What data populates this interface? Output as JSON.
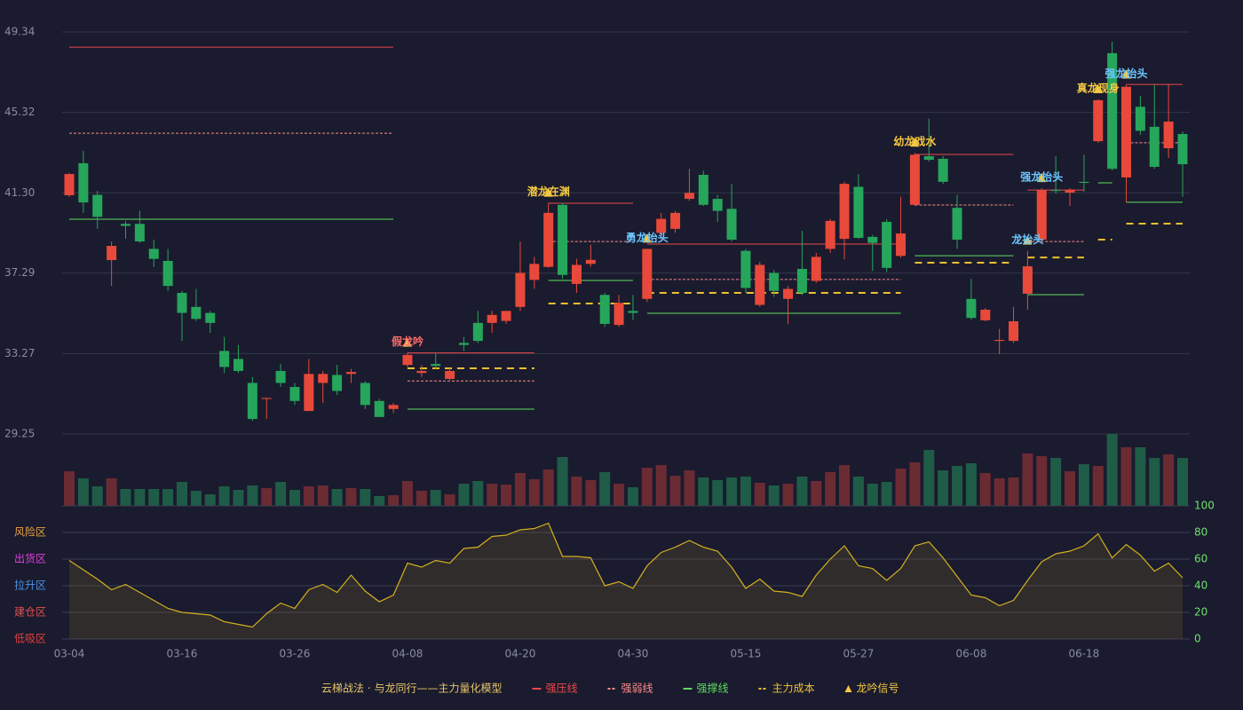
{
  "chart_data": [
    {
      "type": "candlestick",
      "categories": [
        "03-04",
        null,
        null,
        null,
        null,
        null,
        null,
        null,
        "03-16",
        null,
        null,
        null,
        null,
        null,
        null,
        null,
        "03-26",
        null,
        null,
        null,
        null,
        null,
        null,
        null,
        "04-08",
        null,
        null,
        null,
        null,
        null,
        null,
        null,
        "04-20",
        null,
        null,
        null,
        null,
        null,
        null,
        null,
        "04-30",
        null,
        null,
        null,
        null,
        null,
        null,
        null,
        "05-15",
        null,
        null,
        null,
        null,
        null,
        null,
        null,
        "05-27",
        null,
        null,
        null,
        null,
        null,
        null,
        null,
        "06-08",
        null,
        null,
        null,
        null,
        null,
        null,
        null,
        "06-18",
        null,
        null,
        null,
        null,
        null,
        null,
        null
      ],
      "open": [
        41.18,
        42.78,
        41.2,
        37.94,
        39.75,
        39.75,
        38.5,
        37.9,
        36.3,
        35.6,
        35.3,
        33.4,
        33.0,
        31.8,
        31.0,
        32.4,
        31.6,
        30.4,
        31.8,
        32.2,
        32.25,
        31.8,
        30.9,
        30.5,
        32.7,
        32.3,
        32.75,
        32.0,
        33.8,
        34.8,
        34.8,
        34.9,
        35.6,
        36.95,
        37.6,
        40.7,
        36.75,
        37.75,
        36.2,
        34.7,
        35.4,
        36.0,
        39.3,
        39.5,
        41.0,
        42.2,
        41.0,
        40.5,
        38.4,
        35.7,
        37.3,
        36.0,
        37.5,
        36.9,
        38.5,
        39.0,
        41.6,
        39.1,
        39.85,
        38.15,
        40.7,
        43.13,
        43.0,
        40.55,
        36.0,
        34.93,
        33.9,
        33.9,
        36.26,
        38.96,
        41.44,
        41.31,
        41.85,
        43.88,
        48.28,
        42.07,
        45.6,
        44.6,
        43.53,
        44.24
      ],
      "high": [
        42.3,
        43.4,
        41.4,
        38.87,
        39.9,
        40.4,
        38.96,
        38.5,
        36.4,
        36.5,
        35.4,
        34.1,
        33.7,
        32.1,
        31.05,
        32.75,
        31.8,
        33.0,
        32.4,
        32.7,
        32.5,
        31.9,
        31.0,
        30.8,
        33.3,
        32.7,
        33.3,
        32.55,
        34.1,
        35.4,
        35.4,
        35.4,
        38.87,
        38.1,
        40.8,
        40.8,
        38.0,
        38.7,
        36.3,
        36.2,
        36.2,
        38.5,
        40.3,
        40.4,
        42.5,
        42.4,
        41.2,
        41.75,
        38.5,
        37.85,
        37.45,
        36.65,
        39.4,
        38.3,
        40.0,
        41.85,
        42.24,
        39.2,
        39.98,
        41.1,
        43.3,
        45.0,
        43.13,
        41.2,
        37.0,
        35.55,
        34.5,
        35.6,
        38.4,
        41.53,
        43.13,
        41.53,
        43.2,
        45.97,
        48.85,
        46.7,
        46.15,
        46.7,
        46.7,
        44.37
      ],
      "low": [
        41.1,
        40.3,
        39.5,
        36.65,
        39.0,
        38.8,
        37.6,
        36.4,
        33.9,
        34.9,
        34.3,
        32.3,
        32.3,
        29.9,
        30.0,
        31.6,
        30.7,
        30.4,
        30.8,
        31.2,
        31.8,
        30.5,
        30.1,
        30.3,
        32.6,
        32.1,
        32.5,
        31.95,
        33.4,
        33.8,
        34.3,
        34.75,
        35.4,
        36.5,
        37.55,
        37.0,
        36.3,
        37.6,
        34.6,
        34.6,
        34.95,
        35.85,
        38.96,
        39.3,
        40.9,
        40.65,
        39.85,
        38.87,
        36.3,
        35.6,
        36.1,
        34.75,
        36.2,
        36.8,
        38.3,
        37.98,
        39.0,
        37.4,
        37.35,
        38.06,
        40.65,
        42.86,
        41.75,
        38.5,
        34.97,
        34.88,
        33.24,
        33.8,
        35.46,
        38.87,
        41.26,
        40.65,
        41.36,
        43.8,
        42.42,
        40.83,
        44.2,
        42.5,
        43.04,
        41.1
      ],
      "close": [
        42.24,
        40.82,
        40.1,
        38.65,
        39.65,
        38.87,
        38.0,
        36.65,
        35.3,
        35.0,
        34.8,
        32.6,
        32.4,
        30.0,
        31.05,
        31.8,
        30.9,
        32.25,
        32.25,
        31.4,
        32.35,
        30.7,
        30.1,
        30.7,
        33.2,
        32.4,
        32.65,
        32.4,
        33.7,
        33.9,
        35.2,
        35.4,
        37.3,
        37.75,
        40.3,
        37.2,
        37.7,
        37.95,
        34.75,
        35.8,
        35.3,
        38.5,
        40.0,
        40.3,
        41.3,
        40.7,
        40.4,
        38.96,
        36.55,
        37.7,
        36.4,
        36.5,
        36.3,
        38.1,
        39.9,
        41.75,
        39.05,
        38.8,
        37.55,
        39.27,
        43.2,
        42.95,
        41.85,
        38.96,
        35.05,
        35.46,
        33.95,
        34.88,
        37.63,
        41.44,
        41.4,
        41.44,
        41.8,
        45.93,
        42.5,
        46.6,
        44.4,
        42.6,
        44.86,
        42.73
      ],
      "up_color": "#e8493a",
      "down_color": "#26a65b",
      "ylim": [
        29.25,
        49.34
      ],
      "yticks": [
        49.34,
        45.32,
        {
          "value": 41.3,
          "label": "41.30"
        },
        37.29,
        33.27,
        29.25
      ],
      "grid": true,
      "levels": [
        {
          "start": 0,
          "end": 23,
          "resistance": 48.58,
          "weak": 44.28,
          "support": 39.98
        },
        {
          "start": 24,
          "end": 33,
          "resistance": 33.3,
          "weak": 31.9,
          "support": 30.49,
          "cost": 32.53
        },
        {
          "start": 34,
          "end": 40,
          "resistance": 40.78,
          "weak": 38.87,
          "support": 36.92,
          "cost": 35.77
        },
        {
          "start": 41,
          "end": 59,
          "resistance": 38.74,
          "weak": 36.97,
          "support": 35.28,
          "cost": 36.3
        },
        {
          "start": 60,
          "end": 67,
          "resistance": 43.22,
          "weak": 40.69,
          "support": 38.16,
          "cost": 37.81
        },
        {
          "start": 68,
          "end": 72,
          "resistance": 41.44,
          "weak": 38.87,
          "support": 36.21,
          "cost": 38.07
        },
        {
          "start": 73,
          "end": 74,
          "support": 41.8,
          "cost": 38.96
        },
        {
          "start": 75,
          "end": 79,
          "resistance": 46.72,
          "weak": 43.8,
          "support": 40.83,
          "cost": 39.76
        }
      ],
      "signals": [
        {
          "index": 24,
          "label": "假龙吟",
          "color": "#ff6b6b"
        },
        {
          "index": 34,
          "label": "潜龙在渊",
          "color": "#f5c842"
        },
        {
          "index": 41,
          "label": "勇龙抬头",
          "color": "#6cc6ff"
        },
        {
          "index": 60,
          "label": "幼龙戏水",
          "color": "#f5c842"
        },
        {
          "index": 68,
          "label": "龙抬头",
          "color": "#6cc6ff"
        },
        {
          "index": 69,
          "label": "强龙抬头",
          "color": "#6cc6ff"
        },
        {
          "index": 73,
          "label": "真龙现身",
          "color": "#f5c842"
        },
        {
          "index": 75,
          "label": "强龙抬头",
          "color": "#6cc6ff"
        }
      ],
      "legend_title": "云梯战法 · 与龙同行——主力量化模型",
      "legend": [
        {
          "name": "强压线",
          "color": "#e84a4a",
          "style": "solid"
        },
        {
          "name": "强弱线",
          "color": "#ff8a8a",
          "style": "dotted"
        },
        {
          "name": "强撑线",
          "color": "#5ddc5d",
          "style": "solid"
        },
        {
          "name": "主力成本",
          "color": "#f0c030",
          "style": "dashed"
        },
        {
          "name": "龙吟信号",
          "color": "#f5c842",
          "style": "triangle"
        }
      ]
    },
    {
      "type": "bar",
      "values": [
        39,
        31,
        22,
        31,
        19,
        19,
        19,
        19,
        27,
        17,
        13,
        22,
        18,
        23,
        20,
        27,
        18,
        22,
        23,
        19,
        20,
        19,
        11,
        12,
        28,
        17,
        18,
        13,
        25,
        28,
        25,
        24,
        37,
        30,
        41,
        55,
        33,
        29,
        38,
        25,
        21,
        43,
        46,
        34,
        40,
        32,
        29,
        32,
        33,
        26,
        23,
        25,
        33,
        28,
        38,
        46,
        33,
        25,
        27,
        42,
        49,
        63,
        40,
        45,
        48,
        37,
        31,
        32,
        59,
        56,
        54,
        39,
        47,
        45,
        81,
        66,
        66,
        54,
        58,
        54
      ],
      "up_color": "#6b2b33",
      "down_color": "#1f5c47"
    },
    {
      "type": "area",
      "values": [
        59,
        52,
        45,
        37,
        41,
        35,
        29,
        23,
        20,
        19,
        18,
        13,
        11,
        9,
        19,
        27,
        23,
        37,
        41,
        35,
        48,
        36,
        28,
        33,
        57,
        54,
        59,
        57,
        68,
        69,
        77,
        78,
        82,
        83,
        87,
        62,
        62,
        61,
        40,
        43,
        38,
        55,
        65,
        69,
        74,
        69,
        66,
        54,
        38,
        45,
        36,
        35,
        32,
        48,
        60,
        70,
        55,
        53,
        44,
        53,
        70,
        73,
        61,
        47,
        33,
        31,
        25,
        29,
        44,
        58,
        64,
        66,
        70,
        79,
        61,
        71,
        63,
        51,
        57,
        46
      ],
      "color": "#d4b020",
      "ylim": [
        0,
        100
      ],
      "yticks": [
        0,
        20,
        40,
        60,
        80,
        100
      ],
      "tick_color": "#6fe06f",
      "zones": [
        {
          "value": 80,
          "label": "风险区",
          "color": "#e8a040"
        },
        {
          "value": 60,
          "label": "出货区",
          "color": "#e040e0"
        },
        {
          "value": 40,
          "label": "拉升区",
          "color": "#4a90e2"
        },
        {
          "value": 20,
          "label": "建仓区",
          "color": "#e05050"
        },
        {
          "value": 0,
          "label": "低吸区",
          "color": "#e04040"
        }
      ]
    }
  ]
}
